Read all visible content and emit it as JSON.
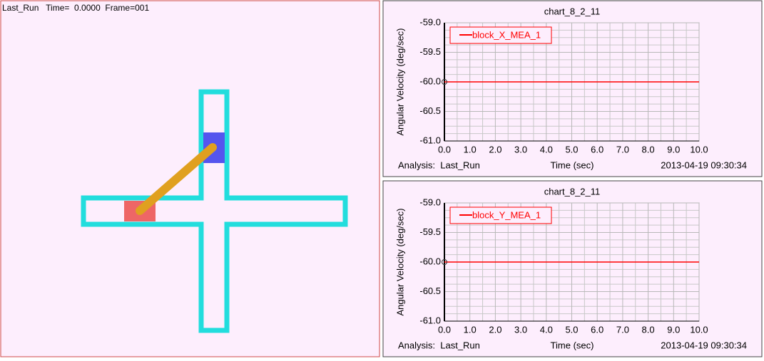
{
  "animation": {
    "header": "Last_Run   Time=  0.0000  Frame=001"
  },
  "plots": [
    {
      "type": "line",
      "title": "chart_8_2_11",
      "y_label": "Angular Velocity (deg/sec)",
      "x_label": "Time (sec)",
      "footer_left": "Analysis:  Last_Run",
      "footer_right": "2013-04-19 09:30:34",
      "xlim": [
        0,
        10
      ],
      "ylim": [
        -61,
        -59
      ],
      "xticks": [
        {
          "value": 0,
          "label": "0.0"
        },
        {
          "value": 1,
          "label": "1.0"
        },
        {
          "value": 2,
          "label": "2.0"
        },
        {
          "value": 3,
          "label": "3.0"
        },
        {
          "value": 4,
          "label": "4.0"
        },
        {
          "value": 5,
          "label": "5.0"
        },
        {
          "value": 6,
          "label": "6.0"
        },
        {
          "value": 7,
          "label": "7.0"
        },
        {
          "value": 8,
          "label": "8.0"
        },
        {
          "value": 9,
          "label": "9.0"
        },
        {
          "value": 10,
          "label": "10.0"
        }
      ],
      "yticks": [
        {
          "value": -59,
          "label": "-59.0"
        },
        -59.5,
        {
          "value": -60,
          "label": "-60.0"
        },
        -60.5,
        {
          "value": -61,
          "label": "-61.0"
        }
      ],
      "grid": true,
      "x": [
        0,
        10
      ],
      "series": [
        {
          "name": "block_X_MEA_1",
          "color": "#ff0000",
          "values": [
            -60,
            -60
          ]
        }
      ]
    },
    {
      "type": "line",
      "title": "chart_8_2_11",
      "y_label": "Angular Velocity (deg/sec)",
      "x_label": "Time (sec)",
      "footer_left": "Analysis:  Last_Run",
      "footer_right": "2013-04-19 09:30:34",
      "xlim": [
        0,
        10
      ],
      "ylim": [
        -61,
        -59
      ],
      "xticks": [
        {
          "value": 0,
          "label": "0.0"
        },
        {
          "value": 1,
          "label": "1.0"
        },
        {
          "value": 2,
          "label": "2.0"
        },
        {
          "value": 3,
          "label": "3.0"
        },
        {
          "value": 4,
          "label": "4.0"
        },
        {
          "value": 5,
          "label": "5.0"
        },
        {
          "value": 6,
          "label": "6.0"
        },
        {
          "value": 7,
          "label": "7.0"
        },
        {
          "value": 8,
          "label": "8.0"
        },
        {
          "value": 9,
          "label": "9.0"
        },
        {
          "value": 10,
          "label": "10.0"
        }
      ],
      "yticks": [
        {
          "value": -59,
          "label": "-59.0"
        },
        -59.5,
        {
          "value": -60,
          "label": "-60.0"
        },
        -60.5,
        {
          "value": -61,
          "label": "-61.0"
        }
      ],
      "grid": true,
      "x": [
        0,
        10
      ],
      "series": [
        {
          "name": "block_Y_MEA_1",
          "color": "#ff0000",
          "values": [
            -60,
            -60
          ]
        }
      ]
    }
  ]
}
